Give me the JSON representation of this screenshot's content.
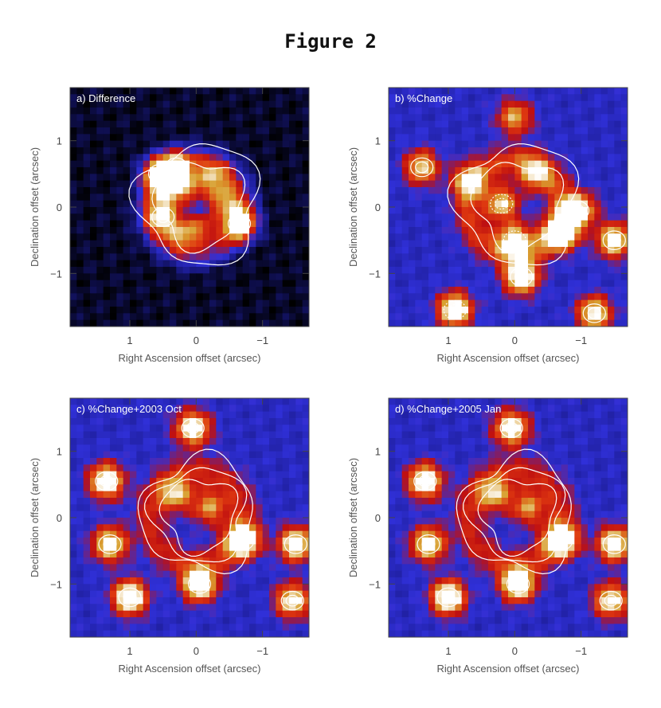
{
  "figure": {
    "title": "Figure 2"
  },
  "chart_data": [
    {
      "type": "heatmap",
      "panel_label": "a) Difference",
      "xlabel": "Right Ascension offset (arcsec)",
      "ylabel": "Declination offset (arcsec)",
      "xticks": [
        1,
        0,
        -1
      ],
      "yticks": [
        1,
        0,
        -1
      ],
      "xlim": [
        1.9,
        -1.7
      ],
      "ylim": [
        -1.8,
        1.8
      ],
      "colormap": [
        "#000000",
        "#1a1a8c",
        "#3030d8",
        "#c01010",
        "#e03a10",
        "#d8a030",
        "#ffffff"
      ],
      "contours": "white solid",
      "features": [
        {
          "x": 0.55,
          "y": 0.5,
          "v": 1.0
        },
        {
          "x": -0.65,
          "y": -0.25,
          "v": 1.0
        },
        {
          "x": 0.3,
          "y": 0.6,
          "v": 0.7
        },
        {
          "x": 0.5,
          "y": -0.15,
          "v": 0.75
        },
        {
          "x": 0.1,
          "y": 0.3,
          "v": 0.55
        },
        {
          "x": -0.25,
          "y": 0.45,
          "v": 0.6
        },
        {
          "x": 0.2,
          "y": -0.4,
          "v": 0.6
        },
        {
          "x": -0.4,
          "y": 0.1,
          "v": 0.65
        },
        {
          "x": 0.4,
          "y": 0.2,
          "v": 0.55
        },
        {
          "x": -0.1,
          "y": -0.3,
          "v": 0.5
        }
      ]
    },
    {
      "type": "heatmap",
      "panel_label": "b) %Change",
      "xlabel": "Right Ascension offset (arcsec)",
      "ylabel": "Declination offset (arcsec)",
      "xticks": [
        1,
        0,
        -1
      ],
      "yticks": [
        1,
        0,
        -1
      ],
      "xlim": [
        1.9,
        -1.7
      ],
      "ylim": [
        -1.8,
        1.8
      ],
      "colormap": [
        "#000000",
        "#1a1a8c",
        "#3030d8",
        "#c01010",
        "#e03a10",
        "#d8a030",
        "#ffffff"
      ],
      "contours": "white solid and dotted",
      "features": [
        {
          "x": -0.7,
          "y": -0.4,
          "v": 1.0
        },
        {
          "x": -0.95,
          "y": -0.05,
          "v": 0.95
        },
        {
          "x": -0.1,
          "y": -1.05,
          "v": 1.0
        },
        {
          "x": 0.2,
          "y": 0.05,
          "v": 0.7
        },
        {
          "x": 0.7,
          "y": 0.4,
          "v": 0.6
        },
        {
          "x": -0.3,
          "y": 0.5,
          "v": 0.55
        },
        {
          "x": 0.0,
          "y": -0.5,
          "v": 0.8
        },
        {
          "x": 1.4,
          "y": 0.6,
          "v": 0.7
        },
        {
          "x": -1.5,
          "y": -0.5,
          "v": 0.85
        },
        {
          "x": 0.9,
          "y": -1.55,
          "v": 0.95
        },
        {
          "x": -1.2,
          "y": -1.6,
          "v": 0.8
        },
        {
          "x": 0.0,
          "y": 1.35,
          "v": 0.6
        }
      ]
    },
    {
      "type": "heatmap",
      "panel_label": "c) %Change+2003 Oct",
      "xlabel": "Right Ascension offset (arcsec)",
      "ylabel": "Declination offset (arcsec)",
      "xticks": [
        1,
        0,
        -1
      ],
      "yticks": [
        1,
        0,
        -1
      ],
      "xlim": [
        1.9,
        -1.7
      ],
      "ylim": [
        -1.8,
        1.8
      ],
      "colormap": [
        "#000000",
        "#1a1a8c",
        "#3030d8",
        "#c01010",
        "#e03a10",
        "#d8a030",
        "#ffffff"
      ],
      "contours": "white solid",
      "features": [
        {
          "x": -0.7,
          "y": -0.35,
          "v": 1.0
        },
        {
          "x": -0.05,
          "y": -1.0,
          "v": 1.0
        },
        {
          "x": 1.35,
          "y": 0.55,
          "v": 0.95
        },
        {
          "x": 1.0,
          "y": -1.2,
          "v": 1.0
        },
        {
          "x": -1.5,
          "y": -0.4,
          "v": 0.9
        },
        {
          "x": 0.05,
          "y": 1.35,
          "v": 0.9
        },
        {
          "x": 0.3,
          "y": 0.35,
          "v": 0.6
        },
        {
          "x": -0.2,
          "y": 0.15,
          "v": 0.55
        },
        {
          "x": 1.3,
          "y": -0.4,
          "v": 0.85
        },
        {
          "x": -1.45,
          "y": -1.25,
          "v": 0.8
        }
      ]
    },
    {
      "type": "heatmap",
      "panel_label": "d) %Change+2005 Jan",
      "xlabel": "Right Ascension offset (arcsec)",
      "ylabel": "Declination offset (arcsec)",
      "xticks": [
        1,
        0,
        -1
      ],
      "yticks": [
        1,
        0,
        -1
      ],
      "xlim": [
        1.9,
        -1.7
      ],
      "ylim": [
        -1.8,
        1.8
      ],
      "colormap": [
        "#000000",
        "#1a1a8c",
        "#3030d8",
        "#c01010",
        "#e03a10",
        "#d8a030",
        "#ffffff"
      ],
      "contours": "white solid",
      "features": [
        {
          "x": -0.7,
          "y": -0.35,
          "v": 1.0
        },
        {
          "x": -0.05,
          "y": -1.0,
          "v": 1.0
        },
        {
          "x": 1.35,
          "y": 0.55,
          "v": 0.95
        },
        {
          "x": 1.0,
          "y": -1.2,
          "v": 1.0
        },
        {
          "x": -1.5,
          "y": -0.4,
          "v": 0.9
        },
        {
          "x": 0.05,
          "y": 1.35,
          "v": 0.9
        },
        {
          "x": 0.3,
          "y": 0.35,
          "v": 0.6
        },
        {
          "x": -0.2,
          "y": 0.15,
          "v": 0.55
        },
        {
          "x": 1.3,
          "y": -0.4,
          "v": 0.85
        },
        {
          "x": -1.45,
          "y": -1.25,
          "v": 0.8
        }
      ]
    }
  ]
}
